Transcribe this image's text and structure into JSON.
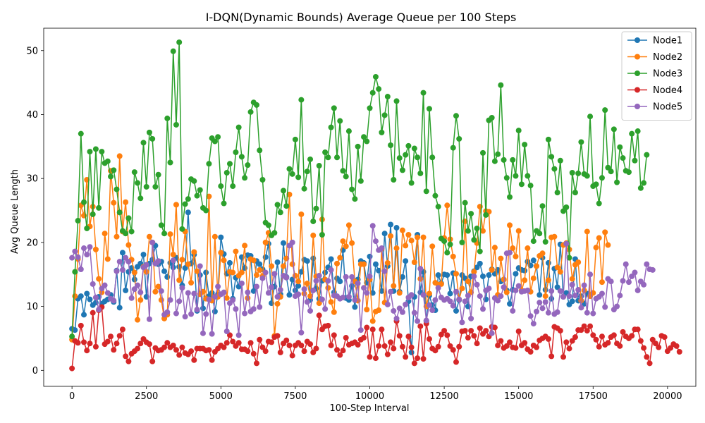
{
  "chart_data": {
    "type": "line",
    "title": "I-DQN(Dynamic Bounds) Average Queue per 100 Steps",
    "xlabel": "100-Step Interval",
    "ylabel": "Avg Queue Length",
    "xlim": [
      -950,
      20950
    ],
    "ylim": [
      -2.5,
      53.5
    ],
    "xticks": [
      0,
      2500,
      5000,
      7500,
      10000,
      12500,
      15000,
      17500,
      20000
    ],
    "yticks": [
      0,
      10,
      20,
      30,
      40,
      50
    ],
    "legend_position": "top-right",
    "grid": false,
    "sample_step": 100,
    "series": [
      {
        "name": "Node1",
        "color": "#1f77b4",
        "values": [
          6.5,
          6.3,
          11.2,
          11.6,
          8.7,
          12.0,
          11.1,
          10.2,
          10.6,
          11.5,
          10.4,
          10.8,
          11.1,
          11.8,
          10.7,
          15.6,
          9.8,
          18.4,
          12.5,
          15.4,
          16.0,
          14.2,
          16.2,
          16.7,
          18.1,
          11.5,
          16.7,
          17.3,
          19.5,
          16.6,
          17.0,
          15.5,
          14.6,
          16.8,
          16.1,
          17.6,
          16.2,
          13.3,
          16.0,
          24.7,
          16.7,
          18.1,
          9.3,
          14.9,
          9.7,
          15.3,
          11.6,
          12.1,
          9.2,
          11.9,
          20.8,
          18.2,
          15.1,
          16.8,
          11.2,
          14.5,
          13.1,
          17.7,
          16.0,
          18.0,
          17.9,
          12.4,
          17.1,
          16.6,
          15.8,
          17.7,
          19.8,
          10.5,
          13.1,
          16.9,
          11.9,
          19.9,
          14.6,
          11.8,
          14.2,
          12.5,
          13.2,
          15.4,
          17.3,
          17.1,
          11.0,
          17.5,
          12.8,
          11.2,
          14.0,
          15.3,
          16.1,
          17.4,
          12.2,
          14.4,
          13.9,
          18.8,
          11.3,
          11.0,
          13.2,
          9.9,
          14.2,
          17.1,
          16.8,
          13.7,
          17.8,
          12.1,
          16.6,
          15.6,
          12.4,
          21.4,
          16.3,
          22.8,
          12.4,
          22.3,
          12.3,
          14.6,
          17.1,
          10.8,
          2.8,
          11.5,
          21.2,
          12.2,
          15.4,
          7.7,
          11.7,
          10.2,
          9.4,
          14.9,
          13.6,
          15.0,
          14.9,
          12.0,
          15.2,
          9.3,
          11.0,
          14.9,
          14.4,
          10.0,
          14.7,
          15.5,
          16.1,
          16.7,
          14.7,
          11.1,
          14.9,
          15.8,
          15.1,
          15.7,
          13.9,
          14.2,
          12.5,
          10.4,
          12.6,
          15.1,
          16.0,
          15.7,
          15.6,
          17.0,
          16.4,
          17.2,
          16.3,
          11.8,
          17.6,
          12.6,
          16.8,
          11.2,
          15.9,
          13.0,
          19.7,
          11.5,
          12.1,
          10.3,
          10.8,
          17.4,
          10.9,
          11.6,
          10.4,
          12.0
        ]
      },
      {
        "name": "Node2",
        "color": "#ff7f0e",
        "values": [
          4.8,
          11.6,
          17.4,
          25.8,
          24.2,
          29.8,
          22.5,
          25.6,
          18.9,
          14.3,
          12.2,
          21.4,
          17.4,
          31.2,
          26.2,
          20.9,
          33.5,
          21.7,
          26.3,
          19.6,
          17.3,
          15.3,
          7.9,
          11.0,
          16.2,
          15.4,
          20.9,
          20.0,
          12.3,
          13.1,
          11.0,
          8.1,
          8.7,
          21.3,
          18.1,
          25.9,
          14.1,
          17.3,
          21.7,
          16.6,
          13.7,
          18.5,
          15.5,
          11.9,
          12.3,
          11.2,
          27.2,
          10.9,
          20.9,
          11.5,
          18.4,
          17.2,
          11.3,
          15.4,
          15.3,
          18.6,
          14.8,
          15.3,
          19.5,
          11.3,
          17.4,
          17.2,
          14.9,
          15.7,
          14.7,
          20.0,
          21.5,
          16.3,
          5.4,
          10.4,
          11.5,
          16.3,
          17.5,
          27.5,
          16.6,
          14.8,
          13.9,
          24.4,
          12.0,
          13.6,
          11.6,
          21.1,
          14.7,
          10.5,
          23.6,
          14.2,
          12.9,
          10.7,
          9.1,
          16.7,
          17.6,
          20.2,
          19.4,
          22.7,
          19.9,
          13.9,
          10.9,
          16.6,
          16.6,
          9.5,
          14.2,
          7.7,
          9.2,
          9.4,
          19.0,
          10.6,
          16.8,
          21.0,
          13.2,
          19.1,
          12.1,
          21.9,
          19.5,
          21.2,
          20.3,
          16.9,
          20.8,
          14.3,
          20.8,
          10.0,
          12.0,
          19.4,
          13.7,
          13.4,
          13.5,
          20.7,
          25.8,
          20.5,
          17.8,
          15.1,
          11.1,
          12.8,
          23.3,
          13.9,
          12.2,
          15.4,
          19.9,
          25.6,
          21.8,
          24.9,
          24.8,
          15.7,
          19.2,
          11.8,
          17.5,
          14.2,
          12.2,
          22.7,
          19.1,
          17.8,
          21.8,
          12.5,
          14.1,
          19.1,
          12.3,
          14.4,
          16.3,
          17.9,
          18.3,
          11.6,
          14.1,
          20.8,
          20.9,
          16.1,
          15.4,
          19.6,
          19.9,
          18.9,
          14.3,
          16.5,
          16.9,
          10.9,
          12.5,
          21.7,
          11.6,
          12.1,
          19.2,
          20.7,
          13.8,
          21.6,
          19.6
        ]
      },
      {
        "name": "Node3",
        "color": "#2ca02c",
        "values": [
          5.3,
          15.4,
          23.4,
          37.0,
          26.3,
          22.2,
          34.2,
          24.4,
          34.6,
          25.4,
          34.2,
          32.4,
          32.7,
          30.3,
          31.3,
          28.3,
          24.7,
          21.8,
          21.4,
          23.8,
          21.7,
          31.0,
          29.3,
          26.9,
          35.6,
          28.7,
          37.2,
          36.2,
          28.7,
          30.6,
          22.7,
          21.4,
          39.4,
          32.5,
          49.9,
          38.4,
          51.3,
          22.1,
          26.0,
          26.8,
          29.9,
          29.6,
          27.3,
          28.2,
          25.4,
          25.0,
          32.3,
          36.3,
          35.8,
          36.5,
          28.8,
          26.1,
          30.9,
          32.3,
          28.8,
          34.1,
          38.0,
          33.4,
          30.1,
          32.1,
          40.4,
          41.9,
          41.5,
          34.4,
          29.8,
          23.1,
          22.7,
          21.1,
          21.5,
          25.9,
          24.7,
          28.1,
          25.7,
          31.5,
          30.7,
          36.1,
          30.2,
          42.3,
          28.4,
          31.1,
          33.0,
          23.3,
          25.3,
          32.0,
          21.2,
          34.1,
          33.3,
          38.0,
          41.0,
          33.3,
          39.0,
          31.2,
          30.3,
          37.4,
          28.3,
          26.8,
          35.0,
          29.6,
          36.5,
          35.8,
          41.0,
          43.4,
          45.9,
          44.0,
          37.2,
          39.9,
          42.8,
          35.2,
          29.8,
          42.1,
          33.2,
          31.3,
          33.7,
          35.1,
          29.3,
          34.7,
          33.3,
          30.8,
          43.4,
          28.0,
          40.9,
          33.3,
          27.3,
          25.6,
          20.6,
          20.2,
          18.4,
          19.7,
          34.8,
          39.8,
          36.2,
          20.0,
          26.2,
          21.8,
          24.5,
          20.4,
          22.2,
          18.6,
          34.0,
          24.3,
          39.1,
          39.5,
          32.7,
          33.8,
          44.6,
          32.9,
          30.1,
          27.1,
          32.9,
          30.4,
          37.5,
          29.1,
          35.3,
          30.4,
          28.9,
          20.2,
          21.8,
          21.4,
          25.7,
          20.1,
          36.1,
          33.4,
          31.5,
          27.8,
          32.8,
          24.9,
          25.5,
          17.6,
          30.9,
          27.8,
          30.8,
          35.7,
          30.7,
          30.4,
          39.7,
          28.8,
          29.1,
          26.1,
          30.1,
          40.7,
          31.7,
          31.1,
          37.7,
          29.4,
          34.9,
          33.2,
          31.2,
          31.0,
          37.0,
          32.8,
          37.4,
          28.5,
          29.3,
          33.7
        ]
      },
      {
        "name": "Node4",
        "color": "#d62728",
        "values": [
          0.3,
          4.6,
          4.3,
          7.0,
          4.4,
          3.1,
          4.2,
          9.0,
          3.7,
          9.4,
          9.9,
          4.1,
          4.5,
          5.3,
          3.2,
          4.2,
          5.4,
          6.4,
          2.2,
          1.4,
          2.6,
          3.0,
          3.4,
          4.2,
          4.9,
          4.4,
          4.1,
          1.4,
          3.5,
          3.1,
          3.2,
          3.6,
          4.3,
          3.6,
          3.9,
          3.2,
          2.4,
          3.6,
          2.7,
          2.5,
          3.0,
          1.6,
          3.4,
          3.4,
          3.4,
          3.1,
          3.2,
          1.6,
          2.9,
          3.4,
          3.9,
          3.6,
          4.3,
          5.5,
          4.5,
          3.8,
          4.3,
          3.3,
          3.3,
          3.0,
          4.3,
          2.6,
          1.1,
          4.8,
          3.6,
          3.0,
          4.5,
          4.4,
          5.2,
          5.4,
          2.8,
          4.2,
          4.7,
          3.9,
          2.3,
          3.9,
          4.3,
          3.9,
          3.0,
          4.5,
          4.1,
          2.8,
          3.4,
          8.6,
          6.4,
          6.9,
          7.0,
          3.9,
          5.5,
          3.2,
          2.4,
          3.1,
          5.1,
          4.0,
          4.2,
          4.4,
          4.0,
          4.8,
          5.1,
          6.7,
          2.1,
          6.4,
          1.9,
          3.8,
          6.4,
          3.8,
          2.5,
          4.4,
          3.4,
          7.7,
          5.4,
          3.7,
          2.1,
          5.3,
          3.6,
          1.1,
          1.9,
          6.9,
          1.8,
          7.3,
          4.9,
          3.4,
          3.1,
          3.7,
          5.6,
          6.2,
          5.5,
          3.8,
          3.2,
          1.3,
          3.7,
          6.1,
          6.2,
          5.1,
          6.2,
          5.4,
          4.2,
          6.6,
          5.7,
          6.2,
          5.3,
          6.8,
          6.7,
          3.9,
          4.6,
          3.5,
          3.8,
          4.4,
          3.6,
          3.5,
          6.1,
          3.9,
          4.3,
          3.3,
          2.9,
          3.9,
          3.6,
          4.7,
          5.0,
          5.3,
          4.9,
          2.2,
          6.8,
          6.6,
          6.2,
          2.1,
          4.4,
          3.4,
          4.6,
          5.2,
          6.3,
          6.3,
          6.9,
          6.2,
          6.9,
          5.5,
          4.8,
          3.7,
          5.3,
          4.0,
          4.3,
          5.2,
          5.5,
          4.2,
          3.8,
          6.0,
          5.3,
          5.0,
          5.4,
          6.4,
          6.4,
          4.6,
          3.5,
          2.1,
          1.1,
          4.8,
          4.2,
          3.6,
          5.4,
          5.2,
          3.0,
          3.5,
          4.1,
          3.8,
          2.9
        ]
      },
      {
        "name": "Node5",
        "color": "#9467bd",
        "values": [
          17.6,
          18.6,
          17.7,
          15.8,
          19.1,
          18.1,
          19.3,
          13.5,
          11.4,
          9.5,
          12.8,
          13.3,
          12.1,
          11.2,
          10.9,
          15.5,
          17.0,
          15.7,
          17.6,
          17.0,
          11.3,
          12.7,
          13.3,
          12.2,
          16.1,
          16.5,
          8.0,
          20.0,
          16.7,
          17.1,
          12.4,
          8.7,
          9.1,
          11.0,
          17.2,
          8.9,
          10.8,
          12.9,
          8.4,
          12.1,
          8.8,
          12.0,
          9.5,
          16.3,
          5.8,
          8.8,
          11.1,
          5.7,
          11.5,
          13.1,
          11.9,
          12.2,
          6.1,
          10.5,
          11.0,
          9.6,
          5.5,
          13.6,
          8.9,
          12.2,
          9.2,
          9.6,
          13.1,
          9.9,
          14.4,
          15.3,
          12.1,
          13.0,
          15.1,
          11.5,
          12.6,
          14.8,
          14.5,
          19.5,
          20.0,
          11.6,
          11.9,
          5.9,
          12.7,
          10.7,
          9.3,
          12.5,
          14.0,
          14.8,
          11.1,
          9.6,
          14.0,
          15.7,
          11.7,
          11.6,
          11.2,
          11.4,
          14.6,
          11.5,
          14.6,
          11.0,
          13.6,
          6.3,
          12.9,
          12.1,
          14.7,
          22.6,
          20.2,
          18.8,
          19.1,
          15.5,
          10.3,
          12.3,
          9.3,
          8.1,
          9.7,
          9.1,
          10.3,
          11.4,
          11.8,
          9.0,
          7.7,
          15.9,
          11.8,
          7.8,
          10.2,
          9.4,
          11.0,
          12.9,
          11.4,
          11.0,
          11.2,
          10.8,
          10.1,
          12.3,
          11.1,
          7.5,
          10.8,
          11.7,
          8.1,
          14.7,
          13.4,
          11.6,
          9.6,
          12.5,
          12.8,
          5.8,
          11.3,
          10.9,
          11.6,
          13.0,
          18.3,
          18.4,
          9.3,
          12.5,
          13.2,
          12.3,
          12.4,
          12.5,
          8.5,
          7.3,
          9.2,
          10.6,
          9.7,
          10.7,
          9.0,
          12.4,
          8.8,
          9.1,
          12.4,
          11.5,
          19.8,
          11.6,
          13.4,
          11.7,
          12.6,
          9.8,
          13.3,
          9.0,
          15.0,
          8.9,
          11.2,
          11.5,
          12.0,
          9.9,
          14.3,
          13.9,
          9.5,
          10.0,
          11.7,
          14.0,
          16.6,
          13.8,
          14.7,
          15.3,
          12.5,
          13.9,
          13.4,
          16.6,
          15.8,
          15.7
        ]
      }
    ]
  }
}
